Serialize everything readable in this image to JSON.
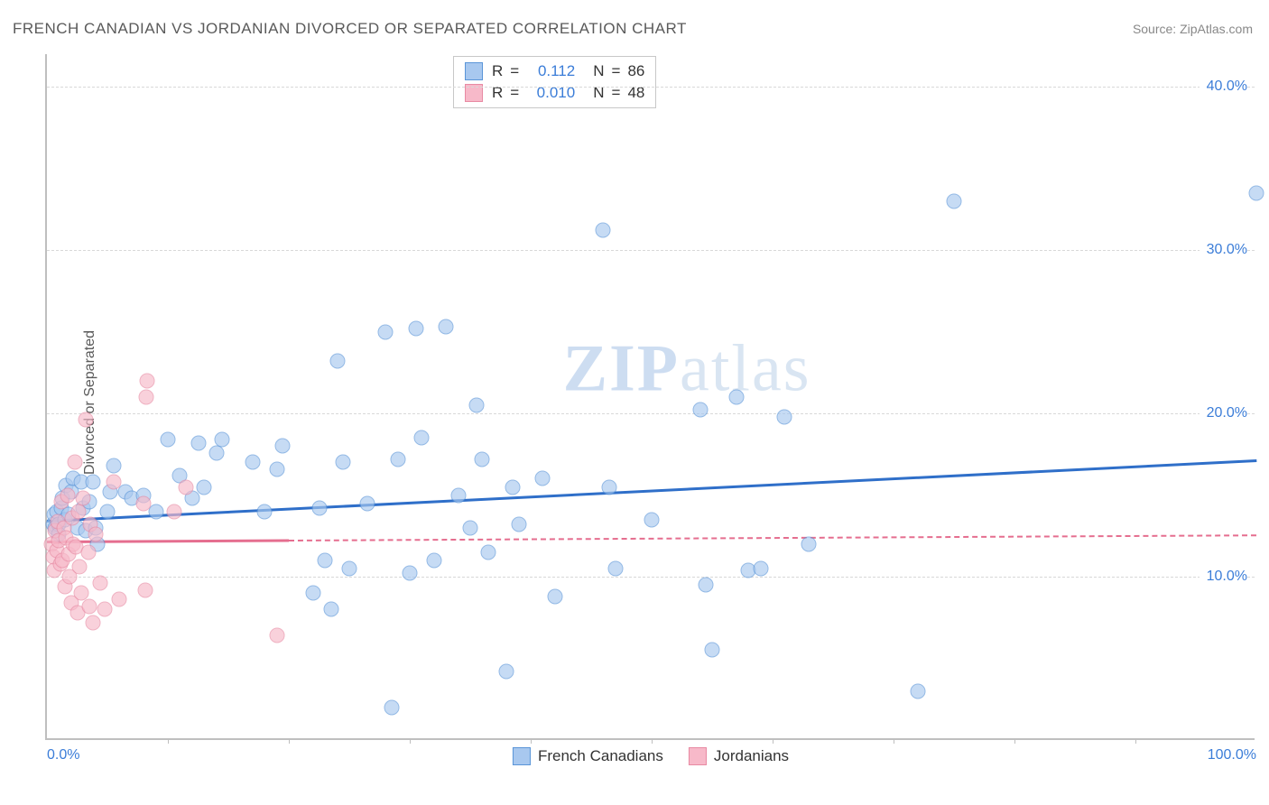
{
  "title": "FRENCH CANADIAN VS JORDANIAN DIVORCED OR SEPARATED CORRELATION CHART",
  "source_label": "Source: ",
  "source_value": "ZipAtlas.com",
  "ylabel": "Divorced or Separated",
  "watermark_bold": "ZIP",
  "watermark_rest": "atlas",
  "chart": {
    "type": "scatter",
    "background_color": "#ffffff",
    "grid_color": "#d8d8d8",
    "axis_color": "#bfbfbf",
    "xlim": [
      0,
      100
    ],
    "ylim": [
      0,
      42
    ],
    "xticks": [
      {
        "pos": 0,
        "label": "0.0%"
      },
      {
        "pos": 100,
        "label": "100.0%"
      }
    ],
    "xtick_marks": [
      10,
      20,
      30,
      40,
      50,
      60,
      70,
      80,
      90
    ],
    "yticks": [
      {
        "pos": 10,
        "label": "10.0%"
      },
      {
        "pos": 20,
        "label": "20.0%"
      },
      {
        "pos": 30,
        "label": "30.0%"
      },
      {
        "pos": 40,
        "label": "40.0%"
      }
    ],
    "series": [
      {
        "name": "French Canadians",
        "fill_color": "#a8c8ef",
        "stroke_color": "#5a95d8",
        "trend_color": "#2f6fc9",
        "trend": {
          "x1": 0,
          "y1": 13.5,
          "x2": 100,
          "y2": 17.2,
          "solid_until_x": 100
        },
        "R_label": "R",
        "R_value": "0.112",
        "N_label": "N",
        "N_value": "86",
        "points": [
          [
            0.5,
            13.2
          ],
          [
            0.6,
            13.8
          ],
          [
            0.7,
            13.0
          ],
          [
            0.8,
            14.0
          ],
          [
            1.0,
            13.2
          ],
          [
            1.0,
            12.6
          ],
          [
            1.2,
            14.2
          ],
          [
            1.3,
            14.8
          ],
          [
            1.5,
            13.5
          ],
          [
            1.6,
            15.6
          ],
          [
            1.8,
            13.8
          ],
          [
            2.0,
            15.2
          ],
          [
            2.2,
            16.0
          ],
          [
            2.5,
            13.0
          ],
          [
            2.8,
            15.8
          ],
          [
            3.0,
            14.2
          ],
          [
            3.2,
            12.8
          ],
          [
            3.5,
            14.6
          ],
          [
            3.8,
            15.8
          ],
          [
            4.0,
            13.0
          ],
          [
            4.2,
            12.0
          ],
          [
            5.0,
            14.0
          ],
          [
            5.2,
            15.2
          ],
          [
            5.5,
            16.8
          ],
          [
            6.5,
            15.2
          ],
          [
            7.0,
            14.8
          ],
          [
            8.0,
            15.0
          ],
          [
            9.0,
            14.0
          ],
          [
            10.0,
            18.4
          ],
          [
            11.0,
            16.2
          ],
          [
            12.0,
            14.8
          ],
          [
            12.5,
            18.2
          ],
          [
            13.0,
            15.5
          ],
          [
            14.0,
            17.6
          ],
          [
            14.5,
            18.4
          ],
          [
            17.0,
            17.0
          ],
          [
            18.0,
            14.0
          ],
          [
            19.0,
            16.6
          ],
          [
            19.5,
            18.0
          ],
          [
            22.0,
            9.0
          ],
          [
            22.5,
            14.2
          ],
          [
            23.0,
            11.0
          ],
          [
            23.5,
            8.0
          ],
          [
            24.0,
            23.2
          ],
          [
            24.5,
            17.0
          ],
          [
            25.0,
            10.5
          ],
          [
            26.5,
            14.5
          ],
          [
            28.0,
            25.0
          ],
          [
            28.5,
            2.0
          ],
          [
            29.0,
            17.2
          ],
          [
            30.0,
            10.2
          ],
          [
            30.5,
            25.2
          ],
          [
            31.0,
            18.5
          ],
          [
            32.0,
            11.0
          ],
          [
            33.0,
            25.3
          ],
          [
            34.0,
            15.0
          ],
          [
            35.0,
            13.0
          ],
          [
            35.5,
            20.5
          ],
          [
            36.0,
            17.2
          ],
          [
            36.5,
            11.5
          ],
          [
            38.0,
            4.2
          ],
          [
            38.5,
            15.5
          ],
          [
            39.0,
            13.2
          ],
          [
            41.0,
            16.0
          ],
          [
            42.0,
            8.8
          ],
          [
            46.0,
            31.2
          ],
          [
            46.5,
            15.5
          ],
          [
            47.0,
            10.5
          ],
          [
            50.0,
            13.5
          ],
          [
            54.0,
            20.2
          ],
          [
            54.5,
            9.5
          ],
          [
            55.0,
            5.5
          ],
          [
            57.0,
            21.0
          ],
          [
            58.0,
            10.4
          ],
          [
            59.0,
            10.5
          ],
          [
            61.0,
            19.8
          ],
          [
            63.0,
            12.0
          ],
          [
            72.0,
            3.0
          ],
          [
            75.0,
            33.0
          ],
          [
            100,
            33.5
          ]
        ]
      },
      {
        "name": "Jordanians",
        "fill_color": "#f7b9c9",
        "stroke_color": "#e88aa3",
        "trend_color": "#e56e8f",
        "trend": {
          "x1": 0,
          "y1": 12.2,
          "x2": 100,
          "y2": 12.6,
          "solid_until_x": 20
        },
        "R_label": "R",
        "R_value": "0.010",
        "N_label": "N",
        "N_value": "48",
        "points": [
          [
            0.4,
            12.0
          ],
          [
            0.5,
            11.2
          ],
          [
            0.6,
            10.4
          ],
          [
            0.7,
            12.8
          ],
          [
            0.8,
            11.6
          ],
          [
            0.9,
            13.4
          ],
          [
            1.0,
            12.2
          ],
          [
            1.1,
            10.8
          ],
          [
            1.2,
            14.6
          ],
          [
            1.3,
            11.0
          ],
          [
            1.4,
            13.0
          ],
          [
            1.5,
            9.4
          ],
          [
            1.6,
            12.4
          ],
          [
            1.7,
            15.0
          ],
          [
            1.8,
            11.4
          ],
          [
            1.9,
            10.0
          ],
          [
            2.0,
            8.4
          ],
          [
            2.1,
            13.6
          ],
          [
            2.2,
            12.0
          ],
          [
            2.3,
            17.0
          ],
          [
            2.4,
            11.8
          ],
          [
            2.5,
            7.8
          ],
          [
            2.6,
            14.0
          ],
          [
            2.7,
            10.6
          ],
          [
            2.8,
            9.0
          ],
          [
            3.0,
            14.8
          ],
          [
            3.2,
            19.6
          ],
          [
            3.4,
            11.5
          ],
          [
            3.5,
            8.2
          ],
          [
            3.6,
            13.2
          ],
          [
            3.8,
            7.2
          ],
          [
            4.0,
            12.6
          ],
          [
            4.4,
            9.6
          ],
          [
            4.8,
            8.0
          ],
          [
            5.5,
            15.8
          ],
          [
            6.0,
            8.6
          ],
          [
            8.0,
            14.5
          ],
          [
            8.1,
            9.2
          ],
          [
            8.2,
            21.0
          ],
          [
            8.3,
            22.0
          ],
          [
            10.5,
            14.0
          ],
          [
            11.5,
            15.5
          ],
          [
            19.0,
            6.4
          ]
        ]
      }
    ]
  },
  "legend_items": [
    {
      "label": "French Canadians",
      "fill": "#a8c8ef",
      "stroke": "#5a95d8"
    },
    {
      "label": "Jordanians",
      "fill": "#f7b9c9",
      "stroke": "#e88aa3"
    }
  ]
}
